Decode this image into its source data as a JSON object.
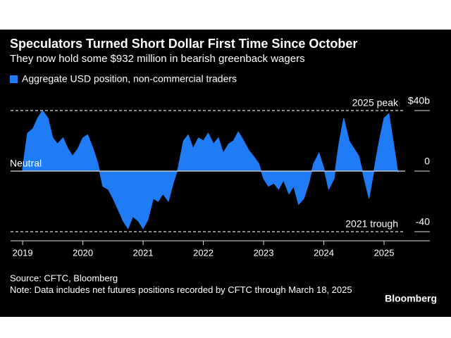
{
  "chart_data": {
    "type": "area",
    "title": "Speculators Turned Short Dollar First Time Since October",
    "subtitle": "They now hold some $932 million in bearish greenback wagers",
    "x": [
      2019.0,
      2019.08,
      2019.17,
      2019.25,
      2019.33,
      2019.42,
      2019.5,
      2019.58,
      2019.67,
      2019.75,
      2019.83,
      2019.92,
      2020.0,
      2020.08,
      2020.17,
      2020.25,
      2020.33,
      2020.42,
      2020.5,
      2020.58,
      2020.67,
      2020.75,
      2020.83,
      2020.92,
      2021.0,
      2021.08,
      2021.17,
      2021.25,
      2021.33,
      2021.42,
      2021.5,
      2021.58,
      2021.67,
      2021.75,
      2021.83,
      2021.92,
      2022.0,
      2022.08,
      2022.17,
      2022.25,
      2022.33,
      2022.42,
      2022.5,
      2022.58,
      2022.67,
      2022.75,
      2022.83,
      2022.92,
      2023.0,
      2023.08,
      2023.17,
      2023.25,
      2023.33,
      2023.42,
      2023.5,
      2023.58,
      2023.67,
      2023.75,
      2023.83,
      2023.92,
      2024.0,
      2024.08,
      2024.17,
      2024.25,
      2024.33,
      2024.42,
      2024.5,
      2024.58,
      2024.67,
      2024.75,
      2024.83,
      2024.92,
      2025.0,
      2025.08,
      2025.17,
      2025.23
    ],
    "series": [
      {
        "name": "Aggregate USD position, non-commercial traders",
        "color": "#1f7cf5",
        "values": [
          2,
          25,
          28,
          35,
          40,
          35,
          22,
          18,
          22,
          15,
          10,
          15,
          22,
          24,
          15,
          5,
          -10,
          -12,
          -18,
          -25,
          -33,
          -38,
          -30,
          -33,
          -38,
          -32,
          -18,
          -20,
          -15,
          -20,
          -8,
          2,
          20,
          24,
          15,
          22,
          20,
          25,
          18,
          22,
          12,
          18,
          20,
          26,
          20,
          14,
          10,
          5,
          -5,
          -10,
          -8,
          -12,
          -6,
          -15,
          -10,
          -22,
          -18,
          -8,
          5,
          12,
          2,
          -12,
          -5,
          18,
          35,
          20,
          15,
          10,
          -5,
          -18,
          0,
          20,
          35,
          38,
          15,
          -1
        ]
      }
    ],
    "xlim": [
      2018.8,
      2025.76
    ],
    "xticks": [
      2019,
      2020,
      2021,
      2022,
      2023,
      2024,
      2025
    ],
    "ylim": [
      -50,
      50
    ],
    "yticks": [
      {
        "value": 40,
        "label": "$40b"
      },
      0,
      -40
    ],
    "annotations": [
      {
        "text": "2025 peak",
        "value": 40
      },
      {
        "text": "Neutral",
        "value": 0
      },
      {
        "text": "2021 trough",
        "value": -40
      }
    ],
    "source": "Source: CFTC, Bloomberg",
    "note": "Note: Data includes net futures positions recorded by CFTC through March 18, 2025",
    "brand": "Bloomberg"
  }
}
